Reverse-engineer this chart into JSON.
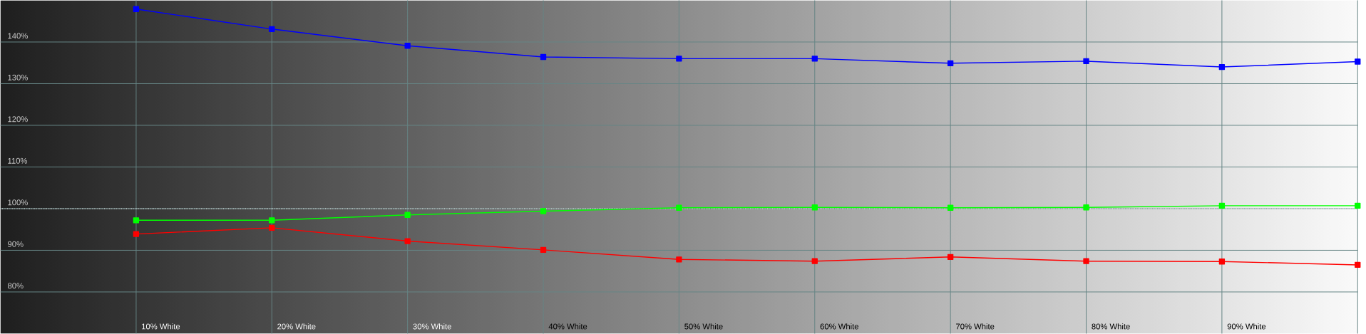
{
  "chart_data": {
    "type": "line",
    "categories": [
      "10% White",
      "20% White",
      "30% White",
      "40% White",
      "50% White",
      "60% White",
      "70% White",
      "80% White",
      "90% White",
      null
    ],
    "series": [
      {
        "color": "#0000ff",
        "values": [
          147.9,
          143.1,
          139.1,
          136.4,
          136.0,
          136.0,
          134.9,
          135.4,
          134.0,
          135.3
        ]
      },
      {
        "color": "#00ff00",
        "values": [
          97.2,
          97.2,
          98.5,
          99.4,
          100.2,
          100.3,
          100.2,
          100.3,
          100.7,
          100.7
        ]
      },
      {
        "color": "#ff0000",
        "values": [
          93.9,
          95.4,
          92.2,
          90.1,
          87.8,
          87.4,
          88.4,
          87.4,
          87.3,
          86.5
        ]
      }
    ],
    "ylim": [
      70,
      150
    ],
    "yticks": [
      {
        "value": 80,
        "label": "80%"
      },
      {
        "value": 90,
        "label": "90%"
      },
      {
        "value": 100,
        "label": "100%"
      },
      {
        "value": 110,
        "label": "110%"
      },
      {
        "value": 120,
        "label": "120%"
      },
      {
        "value": 130,
        "label": "130%"
      },
      {
        "value": 140,
        "label": "140%"
      }
    ],
    "ref_lines": [
      {
        "axis": "y",
        "value": 100,
        "color": "#ffffff",
        "line_style": "dotted"
      }
    ],
    "grid": true,
    "marker": "square",
    "line_style": "solid"
  }
}
